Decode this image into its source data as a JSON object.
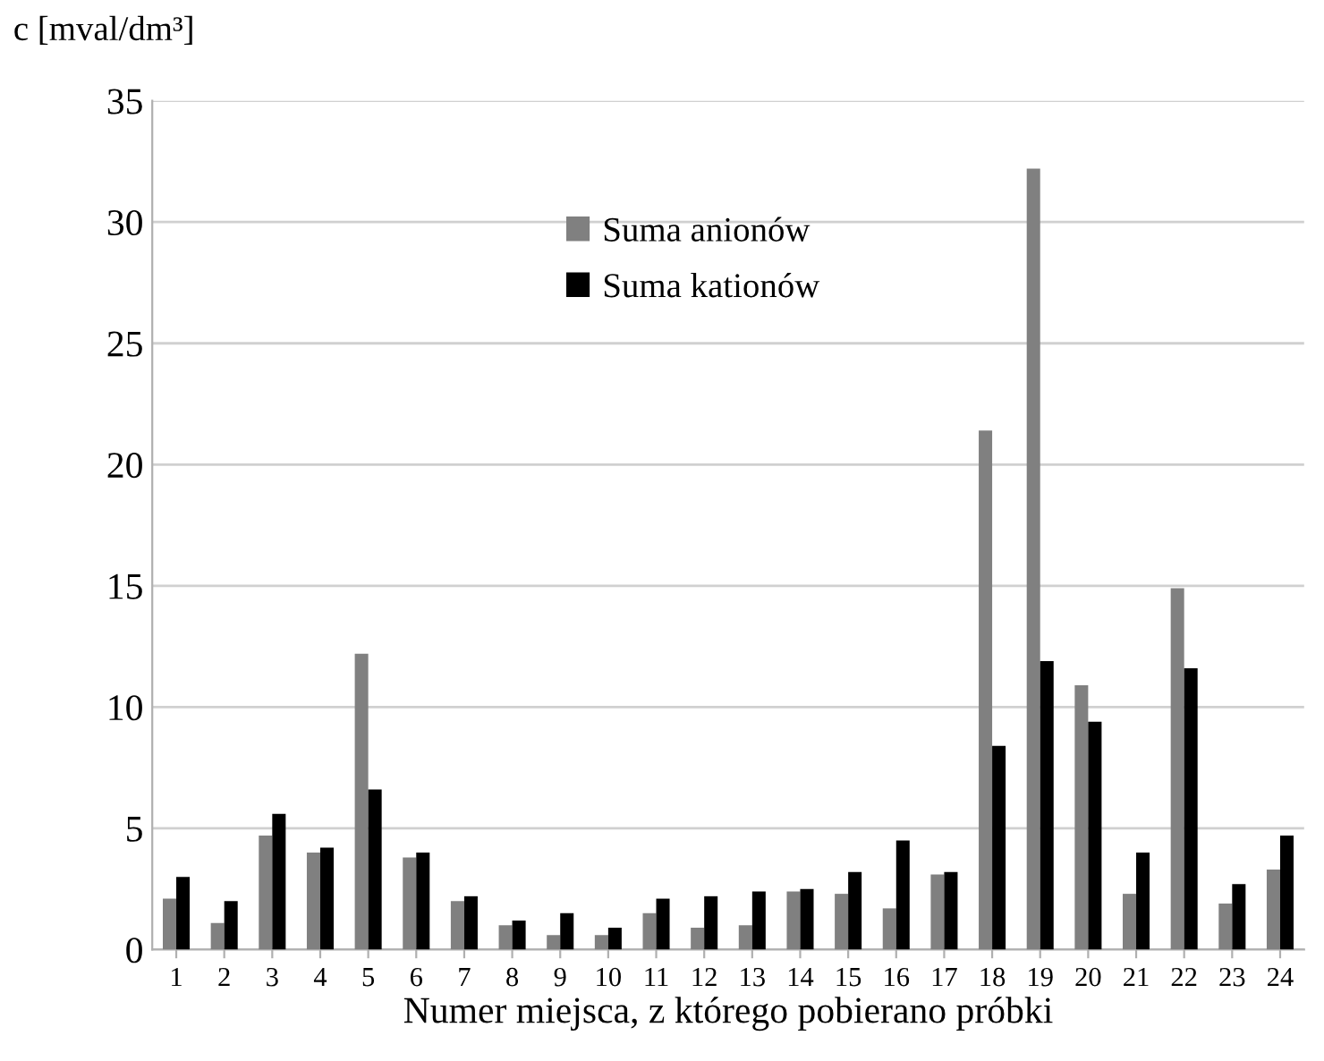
{
  "chart_data": {
    "type": "bar",
    "ylabel": "c [mval/dm³]",
    "xlabel": "Numer miejsca, z którego pobierano próbki",
    "categories": [
      "1",
      "2",
      "3",
      "4",
      "5",
      "6",
      "7",
      "8",
      "9",
      "10",
      "11",
      "12",
      "13",
      "14",
      "15",
      "16",
      "17",
      "18",
      "19",
      "20",
      "21",
      "22",
      "23",
      "24"
    ],
    "series": [
      {
        "name": "Suma anionów",
        "color": "#808080",
        "values": [
          2.1,
          1.1,
          4.7,
          4.0,
          12.2,
          3.8,
          2.0,
          1.0,
          0.6,
          0.6,
          1.5,
          0.9,
          1.0,
          2.4,
          2.3,
          1.7,
          3.1,
          21.4,
          32.2,
          10.9,
          2.3,
          14.9,
          1.9,
          3.3
        ]
      },
      {
        "name": "Suma kationów",
        "color": "#000000",
        "values": [
          3.0,
          2.0,
          5.6,
          4.2,
          6.6,
          4.0,
          2.2,
          1.2,
          1.5,
          0.9,
          2.1,
          2.2,
          2.4,
          2.5,
          3.2,
          4.5,
          3.2,
          8.4,
          11.9,
          9.4,
          4.0,
          11.6,
          2.7,
          4.7
        ]
      }
    ],
    "ylim": [
      0,
      35
    ],
    "yticks": [
      0,
      5,
      10,
      15,
      20,
      25,
      30,
      35
    ],
    "grid": "y",
    "legend": "top"
  }
}
